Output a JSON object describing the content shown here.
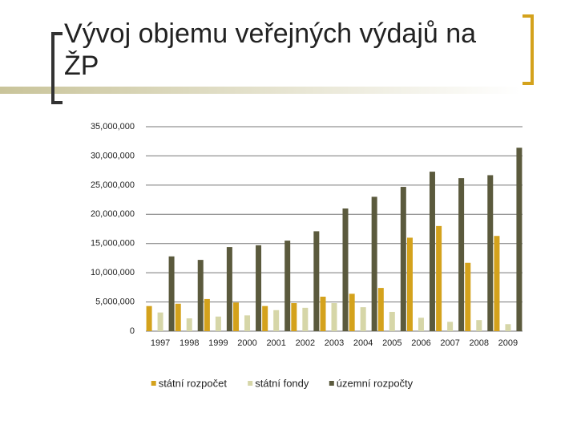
{
  "chart_data": {
    "type": "bar",
    "title": "Vývoj objemu veřejných výdajů na ŽP",
    "categories": [
      "1997",
      "1998",
      "1999",
      "2000",
      "2001",
      "2002",
      "2003",
      "2004",
      "2005",
      "2006",
      "2007",
      "2008",
      "2009"
    ],
    "series": [
      {
        "name": "státní rozpočet",
        "color": "#d4a21c",
        "values": [
          4300000,
          4700000,
          5500000,
          4900000,
          4300000,
          4800000,
          5900000,
          6400000,
          7400000,
          16000000,
          18000000,
          11700000,
          16300000
        ]
      },
      {
        "name": "státní fondy",
        "color": "#d6d6a8",
        "values": [
          3200000,
          2200000,
          2500000,
          2700000,
          3600000,
          4000000,
          4800000,
          4100000,
          3300000,
          2300000,
          1600000,
          1900000,
          1200000
        ]
      },
      {
        "name": "územní rozpočty",
        "color": "#5b5a3d",
        "values": [
          12800000,
          12200000,
          14400000,
          14700000,
          15500000,
          17100000,
          21000000,
          23000000,
          24700000,
          27300000,
          26200000,
          26700000,
          31400000
        ]
      }
    ],
    "ylim": [
      0,
      35000000
    ],
    "yticks": [
      0,
      {
        "value": 5000000,
        "label": "5,000,000"
      },
      {
        "value": 10000000,
        "label": "10,000,000"
      },
      {
        "value": 15000000,
        "label": "15,000,000"
      },
      {
        "value": 20000000,
        "label": "20,000,000"
      },
      {
        "value": 25000000,
        "label": "25,000,000"
      },
      {
        "value": 30000000,
        "label": "30,000,000"
      },
      {
        "value": 35000000,
        "label": "35,000,000"
      }
    ],
    "grid": true,
    "legend": "bottom"
  }
}
